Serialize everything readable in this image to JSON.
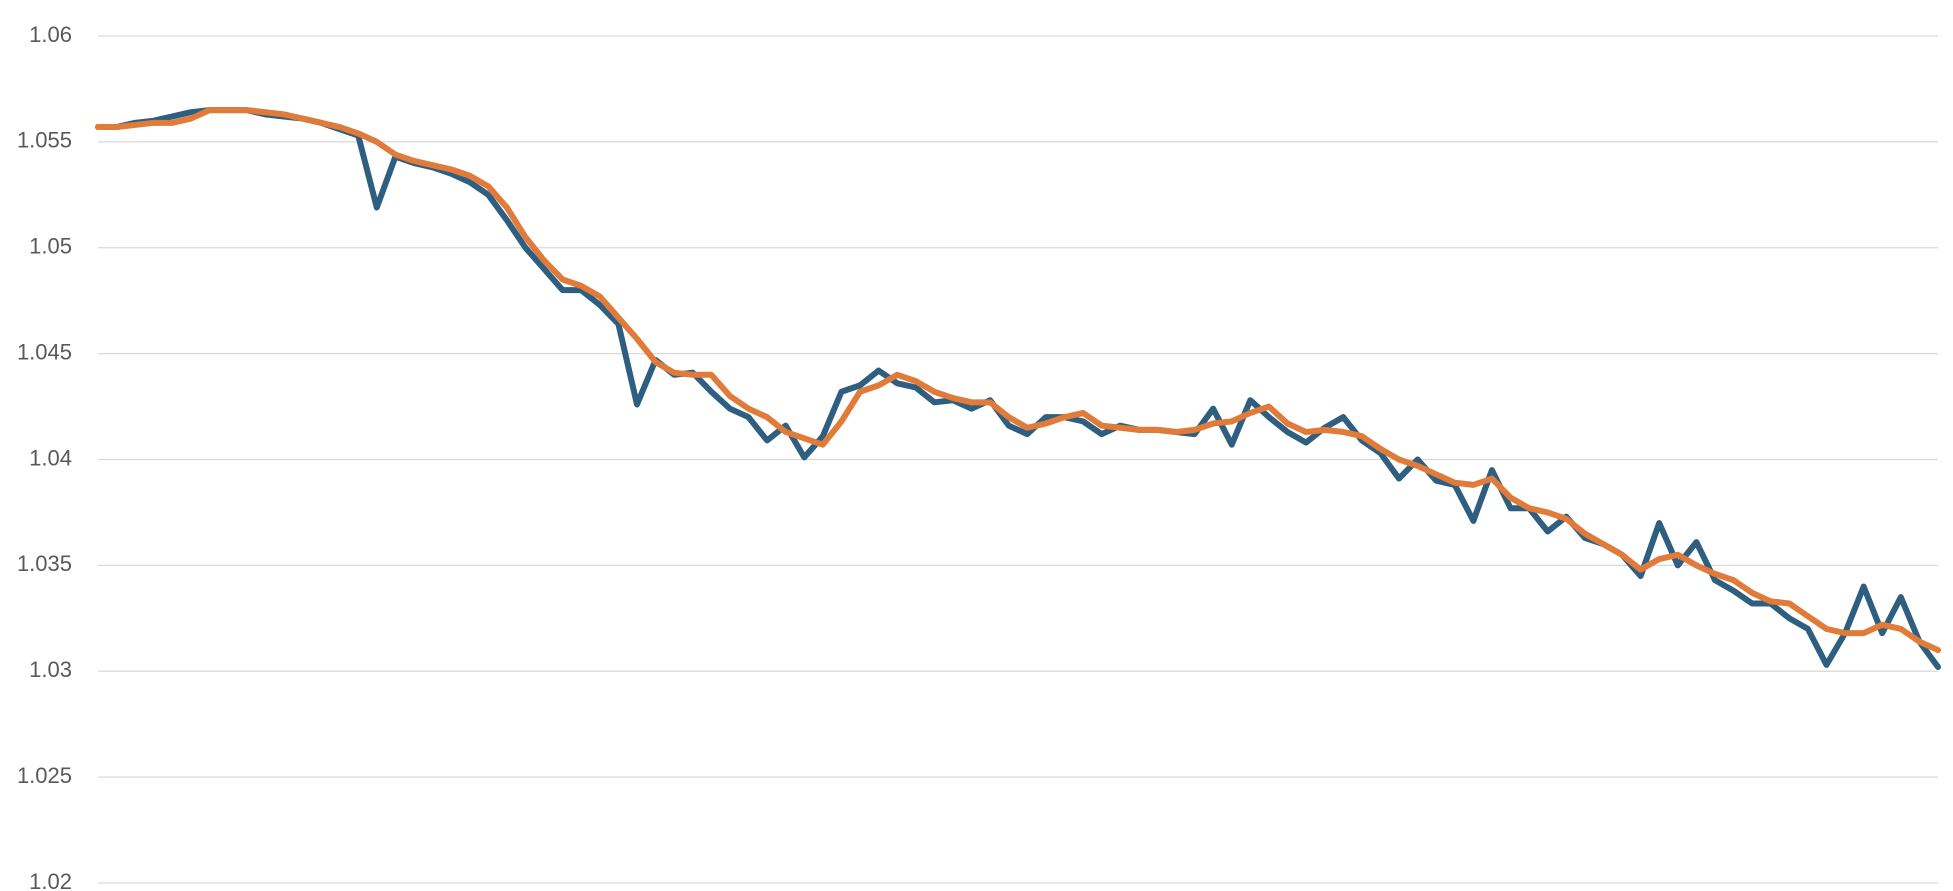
{
  "chart_data": {
    "type": "line",
    "categories": [
      null,
      null,
      null,
      null,
      null,
      null,
      null,
      null,
      null,
      null,
      null,
      null,
      null,
      null,
      null,
      null,
      null,
      null,
      null,
      null,
      null,
      null,
      null,
      null,
      null,
      null,
      null,
      null,
      null,
      null,
      null,
      null,
      null,
      null,
      null,
      null,
      null,
      null,
      null,
      null,
      null,
      null,
      null,
      null,
      null,
      null,
      null,
      null,
      null,
      null,
      null,
      null,
      null,
      null,
      null,
      null,
      null,
      null,
      null,
      null,
      null,
      null,
      null,
      null,
      null,
      null,
      null,
      null,
      null,
      null,
      null,
      null,
      null,
      null,
      null,
      null,
      null,
      null,
      null,
      null,
      null,
      null,
      null,
      null,
      null,
      null,
      null,
      null,
      null,
      null,
      null,
      null,
      null,
      null,
      null,
      null,
      null,
      null,
      null,
      null
    ],
    "series": [
      {
        "color": "#2e5f80",
        "values": [
          1.0557,
          1.0557,
          1.0559,
          1.056,
          1.0562,
          1.0564,
          1.0565,
          1.0565,
          1.0565,
          1.0563,
          1.0562,
          1.0561,
          1.0559,
          1.0556,
          1.0553,
          1.0519,
          1.0543,
          1.054,
          1.0538,
          1.0535,
          1.0531,
          1.0525,
          1.0513,
          1.05,
          1.049,
          1.048,
          1.048,
          1.0473,
          1.0464,
          1.0426,
          1.0447,
          1.044,
          1.0441,
          1.0432,
          1.0424,
          1.042,
          1.0409,
          1.0416,
          1.0401,
          1.0411,
          1.0432,
          1.0435,
          1.0442,
          1.0436,
          1.0434,
          1.0427,
          1.0428,
          1.0424,
          1.0428,
          1.0416,
          1.0412,
          1.042,
          1.042,
          1.0418,
          1.0412,
          1.0416,
          1.0414,
          1.0414,
          1.0413,
          1.0412,
          1.0424,
          1.0407,
          1.0428,
          1.042,
          1.0413,
          1.0408,
          1.0415,
          1.042,
          1.0409,
          1.0403,
          1.0391,
          1.04,
          1.039,
          1.0388,
          1.0371,
          1.0395,
          1.0377,
          1.0377,
          1.0366,
          1.0373,
          1.0363,
          1.036,
          1.0355,
          1.0345,
          1.037,
          1.035,
          1.0361,
          1.0343,
          1.0338,
          1.0332,
          1.0332,
          1.0325,
          1.032,
          1.0303,
          1.0318,
          1.034,
          1.0318,
          1.0335,
          1.0314,
          1.0302
        ]
      },
      {
        "color": "#e07b39",
        "values": [
          1.0557,
          1.0557,
          1.0558,
          1.0559,
          1.0559,
          1.0561,
          1.0565,
          1.0565,
          1.0565,
          1.0564,
          1.0563,
          1.0561,
          1.0559,
          1.0557,
          1.0554,
          1.055,
          1.0544,
          1.0541,
          1.0539,
          1.0537,
          1.0534,
          1.0529,
          1.0519,
          1.0505,
          1.0494,
          1.0485,
          1.0482,
          1.0477,
          1.0467,
          1.0457,
          1.0446,
          1.0441,
          1.044,
          1.044,
          1.043,
          1.0424,
          1.042,
          1.0413,
          1.041,
          1.0407,
          1.0418,
          1.0432,
          1.0435,
          1.044,
          1.0437,
          1.0432,
          1.0429,
          1.0427,
          1.0427,
          1.042,
          1.0415,
          1.0417,
          1.042,
          1.0422,
          1.0416,
          1.0415,
          1.0414,
          1.0414,
          1.0413,
          1.0414,
          1.0417,
          1.0418,
          1.0422,
          1.0425,
          1.0417,
          1.0413,
          1.0414,
          1.0413,
          1.0411,
          1.0405,
          1.04,
          1.0397,
          1.0393,
          1.0389,
          1.0388,
          1.0391,
          1.0382,
          1.0377,
          1.0375,
          1.0372,
          1.0365,
          1.036,
          1.0355,
          1.0348,
          1.0353,
          1.0355,
          1.035,
          1.0346,
          1.0343,
          1.0337,
          1.0333,
          1.0332,
          1.0326,
          1.032,
          1.0318,
          1.0318,
          1.0322,
          1.032,
          1.0314,
          1.031
        ]
      }
    ],
    "ylim": [
      1.02,
      1.06
    ],
    "yticks": [
      1.02,
      1.025,
      1.03,
      1.035,
      1.04,
      1.045,
      1.05,
      1.055,
      1.06
    ],
    "grid": true
  }
}
